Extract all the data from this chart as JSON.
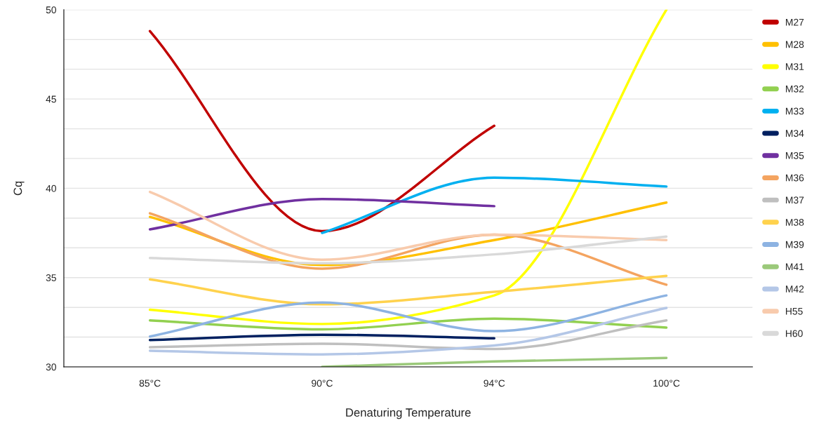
{
  "chart_data": {
    "type": "line",
    "xlabel": "Denaturing Temperature",
    "ylabel": "Cq",
    "categories": [
      "85°C",
      "90°C",
      "94°C",
      "100°C"
    ],
    "ylim": [
      30,
      50
    ],
    "yticks": [
      30,
      {
        "value": 31.67,
        "label": null
      },
      {
        "value": 33.33,
        "label": null
      },
      35,
      {
        "value": 36.67,
        "label": null
      },
      {
        "value": 38.33,
        "label": null
      },
      40,
      {
        "value": 41.67,
        "label": null
      },
      {
        "value": 43.33,
        "label": null
      },
      45,
      {
        "value": 46.67,
        "label": null
      },
      {
        "value": 48.33,
        "label": null
      },
      50
    ],
    "grid": "y",
    "legend": "right",
    "marker": "none",
    "line_style": "solid",
    "series": [
      {
        "name": "M27",
        "color": "#c00000",
        "values": [
          48.8,
          37.6,
          43.5,
          null
        ]
      },
      {
        "name": "M28",
        "color": "#ffc000",
        "values": [
          38.4,
          35.7,
          37.1,
          39.2
        ]
      },
      {
        "name": "M31",
        "color": "#ffff00",
        "values": [
          33.2,
          32.4,
          34.0,
          50.0
        ]
      },
      {
        "name": "M32",
        "color": "#92d050",
        "values": [
          32.6,
          32.1,
          32.7,
          32.2
        ]
      },
      {
        "name": "M33",
        "color": "#00b0f0",
        "values": [
          null,
          37.5,
          40.6,
          40.1
        ]
      },
      {
        "name": "M34",
        "color": "#002060",
        "values": [
          31.5,
          31.8,
          31.6,
          null
        ]
      },
      {
        "name": "M35",
        "color": "#7030a0",
        "values": [
          37.7,
          39.4,
          39.0,
          null
        ]
      },
      {
        "name": "M36",
        "color": "#f4a460",
        "values": [
          38.6,
          35.5,
          37.4,
          34.6
        ]
      },
      {
        "name": "M37",
        "color": "#bfbfbf",
        "values": [
          31.1,
          31.3,
          31.0,
          32.6
        ]
      },
      {
        "name": "M38",
        "color": "#ffd24d",
        "values": [
          34.9,
          33.5,
          34.2,
          35.1
        ]
      },
      {
        "name": "M39",
        "color": "#8db3e2",
        "values": [
          31.7,
          33.6,
          32.0,
          34.0
        ]
      },
      {
        "name": "M41",
        "color": "#9bc97a",
        "values": [
          null,
          30.0,
          30.3,
          30.5
        ]
      },
      {
        "name": "M42",
        "color": "#b4c7e7",
        "values": [
          30.9,
          30.7,
          31.2,
          33.3
        ]
      },
      {
        "name": "H55",
        "color": "#f8cbad",
        "values": [
          39.8,
          36.0,
          37.4,
          37.1
        ]
      },
      {
        "name": "H60",
        "color": "#d9d9d9",
        "values": [
          36.1,
          35.8,
          36.3,
          37.3
        ]
      }
    ]
  }
}
